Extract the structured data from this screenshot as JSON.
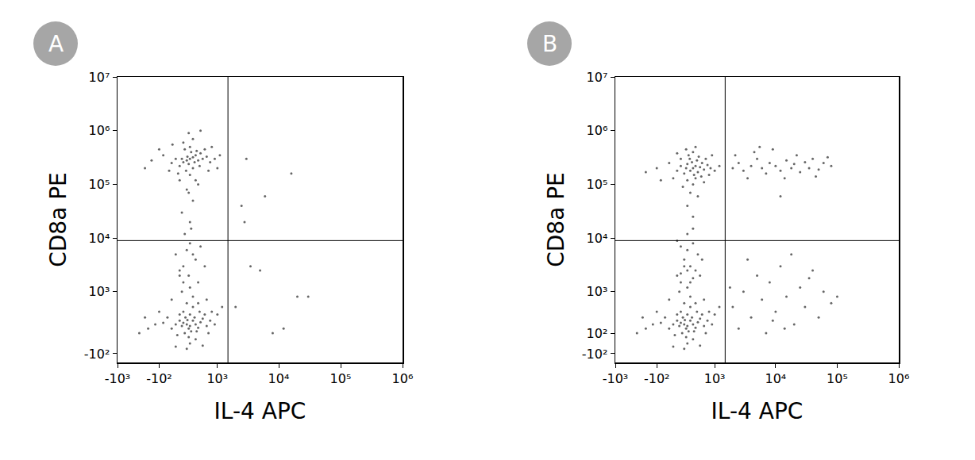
{
  "chart_data": [
    {
      "type": "scatter",
      "label": "A",
      "x_label": "IL-4 APC",
      "y_label": "CD8a PE",
      "log": true,
      "color": "#000000",
      "xlim": [
        -1000,
        1000000
      ],
      "ylim": [
        -200,
        10000000
      ],
      "xticks": [
        {
          "value": -1000,
          "label": "-10³"
        },
        {
          "value": -100,
          "label": "-10²"
        },
        {
          "value": 1000,
          "label": "10³"
        },
        {
          "value": 10000,
          "label": "10⁴"
        },
        {
          "value": 100000,
          "label": "10⁵"
        },
        {
          "value": 1000000,
          "label": "10⁶"
        }
      ],
      "yticks": [
        {
          "value": -100,
          "label": "-10²"
        },
        {
          "value": 1000,
          "label": "10³"
        },
        {
          "value": 10000,
          "label": "10⁴"
        },
        {
          "value": 100000,
          "label": "10⁵"
        },
        {
          "value": 1000000,
          "label": "10⁶"
        },
        {
          "value": 10000000,
          "label": "10⁷"
        }
      ],
      "gates": {
        "x": 1500,
        "y": 9000
      },
      "points": [
        [
          300,
          300000
        ],
        [
          250,
          280000
        ],
        [
          350,
          320000
        ],
        [
          200,
          260000
        ],
        [
          400,
          350000
        ],
        [
          280,
          240000
        ],
        [
          320,
          400000
        ],
        [
          180,
          300000
        ],
        [
          450,
          280000
        ],
        [
          260,
          330000
        ],
        [
          150,
          220000
        ],
        [
          500,
          380000
        ],
        [
          350,
          200000
        ],
        [
          220,
          450000
        ],
        [
          380,
          260000
        ],
        [
          100,
          300000
        ],
        [
          550,
          300000
        ],
        [
          300,
          500000
        ],
        [
          240,
          180000
        ],
        [
          420,
          420000
        ],
        [
          50,
          250000
        ],
        [
          650,
          330000
        ],
        [
          300,
          150000
        ],
        [
          200,
          600000
        ],
        [
          480,
          220000
        ],
        [
          -50,
          350000
        ],
        [
          750,
          260000
        ],
        [
          350,
          700000
        ],
        [
          130,
          160000
        ],
        [
          600,
          450000
        ],
        [
          -200,
          280000
        ],
        [
          900,
          300000
        ],
        [
          280,
          900000
        ],
        [
          400,
          120000
        ],
        [
          20,
          180000
        ],
        [
          800,
          500000
        ],
        [
          250,
          80000
        ],
        [
          350,
          50000
        ],
        [
          180,
          30000
        ],
        [
          300,
          20000
        ],
        [
          450,
          100000
        ],
        [
          -100,
          450000
        ],
        [
          1100,
          350000
        ],
        [
          500,
          1000000
        ],
        [
          150,
          120000
        ],
        [
          700,
          180000
        ],
        [
          60,
          550000
        ],
        [
          1000,
          200000
        ],
        [
          -300,
          200000
        ],
        [
          280,
          70000
        ],
        [
          300,
          8000
        ],
        [
          250,
          6000
        ],
        [
          400,
          4000
        ],
        [
          200,
          3000
        ],
        [
          350,
          5000
        ],
        [
          150,
          2500
        ],
        [
          500,
          7000
        ],
        [
          280,
          2000
        ],
        [
          100,
          5000
        ],
        [
          600,
          3000
        ],
        [
          450,
          1500
        ],
        [
          220,
          12000
        ],
        [
          320,
          15000
        ],
        [
          250,
          200
        ],
        [
          300,
          180
        ],
        [
          200,
          220
        ],
        [
          350,
          250
        ],
        [
          280,
          150
        ],
        [
          230,
          300
        ],
        [
          320,
          120
        ],
        [
          180,
          180
        ],
        [
          400,
          200
        ],
        [
          260,
          260
        ],
        [
          150,
          250
        ],
        [
          450,
          160
        ],
        [
          300,
          350
        ],
        [
          220,
          100
        ],
        [
          380,
          300
        ],
        [
          100,
          200
        ],
        [
          500,
          230
        ],
        [
          280,
          60
        ],
        [
          200,
          400
        ],
        [
          420,
          120
        ],
        [
          50,
          150
        ],
        [
          550,
          280
        ],
        [
          300,
          0
        ],
        [
          150,
          350
        ],
        [
          480,
          400
        ],
        [
          -50,
          220
        ],
        [
          650,
          180
        ],
        [
          350,
          500
        ],
        [
          120,
          80
        ],
        [
          600,
          350
        ],
        [
          -150,
          200
        ],
        [
          750,
          250
        ],
        [
          250,
          600
        ],
        [
          400,
          40
        ],
        [
          0,
          300
        ],
        [
          800,
          400
        ],
        [
          250,
          -50
        ],
        [
          350,
          800
        ],
        [
          180,
          1000
        ],
        [
          450,
          600
        ],
        [
          -250,
          150
        ],
        [
          900,
          200
        ],
        [
          100,
          -30
        ],
        [
          550,
          -20
        ],
        [
          -100,
          400
        ],
        [
          1000,
          350
        ],
        [
          300,
          1200
        ],
        [
          200,
          1500
        ],
        [
          650,
          700
        ],
        [
          -300,
          300
        ],
        [
          1200,
          500
        ],
        [
          150,
          2000
        ],
        [
          50,
          700
        ],
        [
          700,
          100
        ],
        [
          -400,
          100
        ],
        [
          3000,
          300000
        ],
        [
          16000,
          160000
        ],
        [
          2500,
          40000
        ],
        [
          3500,
          3000
        ],
        [
          5000,
          2500
        ],
        [
          20000,
          800
        ],
        [
          30000,
          800
        ],
        [
          12000,
          150
        ],
        [
          8000,
          100
        ],
        [
          2800,
          20000
        ],
        [
          2000,
          500
        ],
        [
          6000,
          60000
        ]
      ]
    },
    {
      "type": "scatter",
      "label": "B",
      "x_label": "IL-4 APC",
      "y_label": "CD8a PE",
      "log": true,
      "color": "#000000",
      "xlim": [
        -1000,
        1000000
      ],
      "ylim": [
        -200,
        10000000
      ],
      "xticks": [
        {
          "value": -1000,
          "label": "-10³"
        },
        {
          "value": -100,
          "label": "-10²"
        },
        {
          "value": 1000,
          "label": "10³"
        },
        {
          "value": 10000,
          "label": "10⁴"
        },
        {
          "value": 100000,
          "label": "10⁵"
        },
        {
          "value": 1000000,
          "label": "10⁶"
        }
      ],
      "yticks": [
        {
          "value": -100,
          "label": "-10²"
        },
        {
          "value": 100,
          "label": "10²"
        },
        {
          "value": 1000,
          "label": "10³"
        },
        {
          "value": 10000,
          "label": "10⁴"
        },
        {
          "value": 100000,
          "label": "10⁵"
        },
        {
          "value": 1000000,
          "label": "10⁶"
        },
        {
          "value": 10000000,
          "label": "10⁷"
        }
      ],
      "gates": {
        "x": 1500,
        "y": 9000
      },
      "points": [
        [
          400,
          200000
        ],
        [
          350,
          180000
        ],
        [
          450,
          220000
        ],
        [
          300,
          240000
        ],
        [
          500,
          170000
        ],
        [
          380,
          260000
        ],
        [
          420,
          150000
        ],
        [
          280,
          200000
        ],
        [
          550,
          210000
        ],
        [
          340,
          300000
        ],
        [
          250,
          160000
        ],
        [
          600,
          250000
        ],
        [
          450,
          130000
        ],
        [
          320,
          350000
        ],
        [
          480,
          280000
        ],
        [
          200,
          220000
        ],
        [
          650,
          190000
        ],
        [
          400,
          400000
        ],
        [
          300,
          120000
        ],
        [
          520,
          330000
        ],
        [
          150,
          180000
        ],
        [
          750,
          230000
        ],
        [
          400,
          100000
        ],
        [
          280,
          450000
        ],
        [
          580,
          140000
        ],
        [
          50,
          250000
        ],
        [
          850,
          200000
        ],
        [
          450,
          500000
        ],
        [
          230,
          90000
        ],
        [
          700,
          300000
        ],
        [
          -100,
          200000
        ],
        [
          1000,
          180000
        ],
        [
          350,
          70000
        ],
        [
          500,
          60000
        ],
        [
          100,
          130000
        ],
        [
          900,
          350000
        ],
        [
          -250,
          170000
        ],
        [
          1200,
          220000
        ],
        [
          300,
          40000
        ],
        [
          400,
          25000
        ],
        [
          200,
          300000
        ],
        [
          650,
          110000
        ],
        [
          -50,
          120000
        ],
        [
          800,
          150000
        ],
        [
          150,
          380000
        ],
        [
          400,
          8000
        ],
        [
          300,
          6000
        ],
        [
          500,
          5000
        ],
        [
          250,
          4000
        ],
        [
          350,
          3000
        ],
        [
          450,
          2500
        ],
        [
          200,
          7000
        ],
        [
          600,
          4000
        ],
        [
          300,
          12000
        ],
        [
          400,
          15000
        ],
        [
          150,
          9000
        ],
        [
          550,
          2000
        ],
        [
          2000,
          200000
        ],
        [
          2500,
          250000
        ],
        [
          3000,
          180000
        ],
        [
          4000,
          220000
        ],
        [
          5000,
          300000
        ],
        [
          6000,
          200000
        ],
        [
          7000,
          160000
        ],
        [
          8000,
          250000
        ],
        [
          10000,
          220000
        ],
        [
          12000,
          180000
        ],
        [
          15000,
          280000
        ],
        [
          18000,
          200000
        ],
        [
          20000,
          240000
        ],
        [
          25000,
          170000
        ],
        [
          30000,
          260000
        ],
        [
          35000,
          200000
        ],
        [
          40000,
          300000
        ],
        [
          50000,
          190000
        ],
        [
          60000,
          250000
        ],
        [
          80000,
          220000
        ],
        [
          2200,
          350000
        ],
        [
          4500,
          400000
        ],
        [
          9000,
          450000
        ],
        [
          14000,
          130000
        ],
        [
          22000,
          350000
        ],
        [
          45000,
          140000
        ],
        [
          70000,
          320000
        ],
        [
          3500,
          130000
        ],
        [
          12000,
          60000
        ],
        [
          5500,
          500000
        ],
        [
          250,
          200
        ],
        [
          300,
          180
        ],
        [
          200,
          220
        ],
        [
          350,
          250
        ],
        [
          280,
          150
        ],
        [
          230,
          300
        ],
        [
          320,
          120
        ],
        [
          180,
          180
        ],
        [
          400,
          200
        ],
        [
          260,
          260
        ],
        [
          150,
          250
        ],
        [
          450,
          160
        ],
        [
          300,
          350
        ],
        [
          220,
          100
        ],
        [
          380,
          300
        ],
        [
          100,
          200
        ],
        [
          500,
          230
        ],
        [
          280,
          60
        ],
        [
          200,
          400
        ],
        [
          420,
          120
        ],
        [
          50,
          150
        ],
        [
          550,
          280
        ],
        [
          300,
          0
        ],
        [
          150,
          350
        ],
        [
          480,
          400
        ],
        [
          -50,
          220
        ],
        [
          650,
          180
        ],
        [
          350,
          500
        ],
        [
          120,
          80
        ],
        [
          600,
          350
        ],
        [
          -150,
          200
        ],
        [
          750,
          250
        ],
        [
          250,
          600
        ],
        [
          400,
          40
        ],
        [
          0,
          300
        ],
        [
          800,
          400
        ],
        [
          250,
          -50
        ],
        [
          350,
          800
        ],
        [
          180,
          1000
        ],
        [
          450,
          600
        ],
        [
          -250,
          150
        ],
        [
          900,
          200
        ],
        [
          100,
          -30
        ],
        [
          550,
          -20
        ],
        [
          -100,
          400
        ],
        [
          1000,
          350
        ],
        [
          300,
          1200
        ],
        [
          200,
          1500
        ],
        [
          650,
          700
        ],
        [
          -300,
          300
        ],
        [
          1200,
          500
        ],
        [
          150,
          2000
        ],
        [
          50,
          700
        ],
        [
          700,
          100
        ],
        [
          -400,
          100
        ],
        [
          300,
          2500
        ],
        [
          250,
          3000
        ],
        [
          400,
          1800
        ],
        [
          200,
          2200
        ],
        [
          350,
          1500
        ],
        [
          2000,
          500
        ],
        [
          3000,
          1000
        ],
        [
          4000,
          300
        ],
        [
          5000,
          2000
        ],
        [
          6000,
          700
        ],
        [
          8000,
          1500
        ],
        [
          10000,
          400
        ],
        [
          12000,
          3000
        ],
        [
          15000,
          800
        ],
        [
          20000,
          200
        ],
        [
          25000,
          1200
        ],
        [
          30000,
          500
        ],
        [
          40000,
          2500
        ],
        [
          50000,
          300
        ],
        [
          60000,
          1000
        ],
        [
          80000,
          600
        ],
        [
          2500,
          150
        ],
        [
          3500,
          4000
        ],
        [
          7000,
          100
        ],
        [
          18000,
          5000
        ],
        [
          1800,
          1200
        ],
        [
          9000,
          250
        ],
        [
          14000,
          150
        ],
        [
          35000,
          1800
        ],
        [
          100000,
          800
        ]
      ]
    }
  ]
}
